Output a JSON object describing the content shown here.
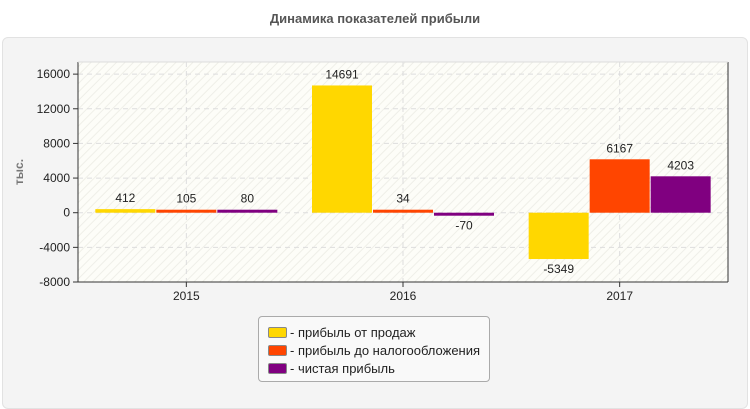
{
  "chart_data": {
    "type": "bar",
    "title": "Динамика показателей прибыли",
    "xlabel": "",
    "ylabel": "тыс.",
    "ylim": [
      -8000,
      17400
    ],
    "yticks": [
      -8000,
      -4000,
      0,
      4000,
      8000,
      12000,
      16000
    ],
    "grid": true,
    "legend_position": "bottom",
    "categories": [
      "2015",
      "2016",
      "2017"
    ],
    "series": [
      {
        "name": "- прибыль от продаж",
        "color": "#FFD700",
        "values": [
          412,
          14691,
          -5349
        ]
      },
      {
        "name": "- прибыль до налогообложения",
        "color": "#FF4500",
        "values": [
          105,
          34,
          6167
        ]
      },
      {
        "name": "- чистая прибыль",
        "color": "#800080",
        "values": [
          80,
          -70,
          4203
        ]
      }
    ]
  }
}
